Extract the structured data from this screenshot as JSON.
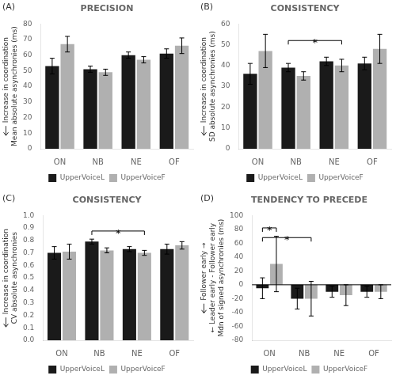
{
  "chart_data": [
    {
      "type": "bar",
      "panel_label": "(A)",
      "title": "PRECISION",
      "ylabel": [
        "Increase in coordination",
        "Mean absolute asynchronies (ms)"
      ],
      "categories": [
        "ON",
        "NB",
        "NE",
        "OF"
      ],
      "series": [
        {
          "name": "UpperVoiceL",
          "color": "#1a1a1a",
          "values": [
            53,
            51,
            60,
            61
          ],
          "errors": [
            5,
            2,
            2,
            3
          ]
        },
        {
          "name": "UpperVoiceF",
          "color": "#b0b0b0",
          "values": [
            67,
            49,
            57,
            66
          ],
          "errors": [
            5,
            2,
            2,
            5
          ]
        }
      ],
      "ylim": [
        0,
        80
      ],
      "yticks": [
        0,
        10,
        20,
        30,
        40,
        50,
        60,
        70,
        80
      ],
      "grid": false,
      "legend": "bottom"
    },
    {
      "type": "bar",
      "panel_label": "(B)",
      "title": "CONSISTENCY",
      "ylabel": [
        "Increase in coordination",
        "SD absolute asynchronies (ms)"
      ],
      "categories": [
        "ON",
        "NB",
        "NE",
        "OF"
      ],
      "series": [
        {
          "name": "UpperVoiceL",
          "color": "#1a1a1a",
          "values": [
            36,
            39,
            42,
            41
          ],
          "errors": [
            5,
            2,
            2,
            3
          ]
        },
        {
          "name": "UpperVoiceF",
          "color": "#b0b0b0",
          "values": [
            47,
            35,
            40,
            48
          ],
          "errors": [
            8,
            2,
            3,
            7
          ]
        }
      ],
      "ylim": [
        0,
        60
      ],
      "yticks": [
        0,
        10,
        20,
        30,
        40,
        50,
        60
      ],
      "annotations": [
        {
          "type": "bracket",
          "from": {
            "category": "NB",
            "series": "UpperVoiceL"
          },
          "to": {
            "category": "NE",
            "series": "UpperVoiceF"
          },
          "y": 52,
          "label": "*"
        }
      ],
      "grid": false,
      "legend": "bottom"
    },
    {
      "type": "bar",
      "panel_label": "(C)",
      "title": "CONSISTENCY",
      "ylabel": [
        "Increase in coordination",
        "CV absolute asynchronies"
      ],
      "categories": [
        "ON",
        "NB",
        "NE",
        "OF"
      ],
      "series": [
        {
          "name": "UpperVoiceL",
          "color": "#1a1a1a",
          "values": [
            0.7,
            0.79,
            0.73,
            0.73
          ],
          "errors": [
            0.05,
            0.02,
            0.02,
            0.04
          ]
        },
        {
          "name": "UpperVoiceF",
          "color": "#b0b0b0",
          "values": [
            0.71,
            0.72,
            0.7,
            0.76
          ],
          "errors": [
            0.06,
            0.02,
            0.02,
            0.03
          ]
        }
      ],
      "ylim": [
        0.0,
        1.0
      ],
      "yticks": [
        {
          "value": 0.0,
          "label": "0.0"
        },
        0.1,
        0.2,
        0.3,
        0.4,
        0.5,
        0.6,
        0.7,
        0.8,
        0.9,
        {
          "value": 1.0,
          "label": "1.0"
        }
      ],
      "annotations": [
        {
          "type": "bracket",
          "from": {
            "category": "NB",
            "series": "UpperVoiceL"
          },
          "to": {
            "category": "NE",
            "series": "UpperVoiceF"
          },
          "y": 0.875,
          "label": "*"
        }
      ],
      "grid": false,
      "legend": "bottom"
    },
    {
      "type": "bar",
      "panel_label": "(D)",
      "title": "TENDENCY TO PRECEDE",
      "ylabel": [
        "Follower early →",
        "← Leader early - Follower early",
        "Mdn of signed asynchronies (ms)"
      ],
      "categories": [
        "ON",
        "NB",
        "NE",
        "OF"
      ],
      "series": [
        {
          "name": "UpperVoiceL",
          "color": "#1a1a1a",
          "values": [
            -5,
            -20,
            -10,
            -10
          ],
          "errors": [
            15,
            15,
            8,
            8
          ]
        },
        {
          "name": "UpperVoiceF",
          "color": "#b0b0b0",
          "values": [
            30,
            -20,
            -15,
            -10
          ],
          "errors": [
            40,
            25,
            15,
            10
          ]
        }
      ],
      "ylim": [
        -80,
        100
      ],
      "yticks": [
        -80,
        -60,
        -40,
        -20,
        0,
        20,
        40,
        60,
        80,
        100
      ],
      "annotations": [
        {
          "type": "hline",
          "y": 0
        },
        {
          "type": "bracket",
          "from": {
            "category": "ON",
            "series": "UpperVoiceL"
          },
          "to": {
            "category": "ON",
            "series": "UpperVoiceF"
          },
          "y": 82,
          "label": "*"
        },
        {
          "type": "bracket",
          "from": {
            "category": "ON",
            "series": "UpperVoiceL"
          },
          "to": {
            "category": "NB",
            "series": "UpperVoiceF"
          },
          "y": 68,
          "label": "*"
        }
      ],
      "grid": false,
      "legend": "bottom"
    }
  ]
}
